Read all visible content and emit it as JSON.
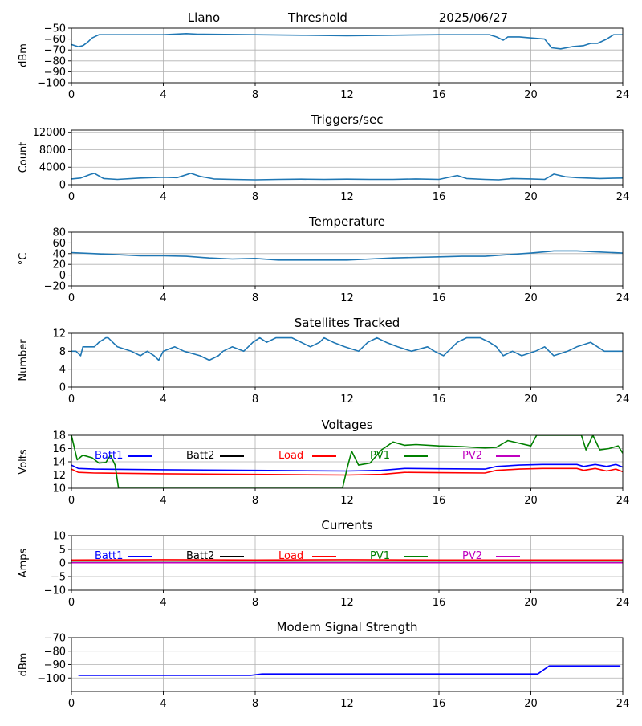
{
  "header": {
    "site": "Llano",
    "mode": "Threshold",
    "date": "2025/06/27"
  },
  "chart_data": [
    {
      "type": "line",
      "title": "",
      "ylabel": "dBm",
      "xlim": [
        0,
        24
      ],
      "ylim": [
        -100,
        -50
      ],
      "xticks": [
        0,
        4,
        8,
        12,
        16,
        20,
        24
      ],
      "yticks": [
        -100,
        -90,
        -80,
        -70,
        -60,
        -50
      ],
      "grid": true,
      "series": [
        {
          "color": "#1f77b4",
          "x": [
            0,
            0.3,
            0.5,
            0.7,
            0.9,
            1.2,
            2,
            4,
            5,
            5.5,
            8,
            10,
            12,
            14,
            16,
            17,
            18.2,
            18.5,
            18.8,
            19,
            19.5,
            20,
            20.6,
            20.9,
            21.3,
            21.8,
            22.3,
            22.6,
            22.9,
            23.3,
            23.6,
            24
          ],
          "y": [
            -65,
            -67,
            -66,
            -63,
            -59,
            -56,
            -56,
            -56,
            -55,
            -55.5,
            -56,
            -56.5,
            -57,
            -56.5,
            -56,
            -56,
            -56,
            -58,
            -61,
            -58,
            -58,
            -59,
            -60,
            -68,
            -69,
            -67,
            -66,
            -64,
            -64,
            -60,
            -56,
            -56
          ]
        }
      ]
    },
    {
      "type": "line",
      "title": "Triggers/sec",
      "ylabel": "Count",
      "xlim": [
        0,
        24
      ],
      "ylim": [
        0,
        12500
      ],
      "xticks": [
        0,
        4,
        8,
        12,
        16,
        20,
        24
      ],
      "yticks": [
        0,
        4000,
        8000,
        12000
      ],
      "grid": true,
      "series": [
        {
          "color": "#1f77b4",
          "x": [
            0,
            0.4,
            0.8,
            1.0,
            1.4,
            2,
            3,
            4,
            4.6,
            5.2,
            5.6,
            6.2,
            7,
            8,
            9,
            10,
            11,
            12,
            13,
            14,
            15,
            16,
            16.8,
            17.2,
            18,
            18.6,
            19.2,
            20,
            20.6,
            21,
            21.5,
            22,
            23,
            24
          ],
          "y": [
            1300,
            1500,
            2300,
            2600,
            1400,
            1200,
            1500,
            1700,
            1600,
            2600,
            1900,
            1300,
            1200,
            1100,
            1200,
            1250,
            1200,
            1250,
            1200,
            1200,
            1300,
            1200,
            2100,
            1400,
            1200,
            1100,
            1400,
            1300,
            1200,
            2400,
            1800,
            1600,
            1400,
            1500
          ]
        }
      ]
    },
    {
      "type": "line",
      "title": "Temperature",
      "ylabel": "°C",
      "xlim": [
        0,
        24
      ],
      "ylim": [
        -20,
        80
      ],
      "xticks": [
        0,
        4,
        8,
        12,
        16,
        20,
        24
      ],
      "yticks": [
        -20,
        0,
        20,
        40,
        60,
        80
      ],
      "grid": true,
      "series": [
        {
          "color": "#1f77b4",
          "x": [
            0,
            1,
            2,
            3,
            4,
            5,
            6,
            7,
            8,
            9,
            10,
            11,
            12,
            13,
            14,
            15,
            16,
            17,
            18,
            19,
            20,
            20.8,
            21,
            22,
            23,
            24
          ],
          "y": [
            42,
            40,
            38,
            36,
            36,
            35,
            32,
            30,
            31,
            28,
            28,
            28,
            28,
            30,
            32,
            33,
            34,
            35,
            35,
            38,
            41,
            44,
            45,
            45,
            43,
            41
          ]
        }
      ]
    },
    {
      "type": "line",
      "title": "Satellites Tracked",
      "ylabel": "Number",
      "xlim": [
        0,
        24
      ],
      "ylim": [
        0,
        12
      ],
      "xticks": [
        0,
        4,
        8,
        12,
        16,
        20,
        24
      ],
      "yticks": [
        0,
        4,
        8,
        12
      ],
      "grid": true,
      "series": [
        {
          "color": "#1f77b4",
          "x": [
            0,
            0.2,
            0.4,
            0.5,
            1.0,
            1.2,
            1.5,
            1.6,
            1.8,
            2.0,
            2.6,
            3.0,
            3.3,
            3.6,
            3.8,
            4.0,
            4.5,
            4.9,
            5.6,
            6.0,
            6.4,
            6.6,
            7.0,
            7.5,
            7.9,
            8.2,
            8.5,
            8.9,
            9.2,
            9.6,
            10.0,
            10.4,
            10.8,
            11.0,
            11.4,
            11.9,
            12.5,
            12.9,
            13.3,
            13.7,
            14.2,
            14.8,
            15.5,
            15.8,
            16.2,
            16.4,
            16.8,
            17.2,
            17.8,
            18.2,
            18.5,
            18.8,
            19.2,
            19.6,
            20.2,
            20.6,
            21.0,
            21.6,
            22.0,
            22.6,
            22.9,
            23.2,
            24
          ],
          "y": [
            8,
            8,
            7,
            9,
            9,
            10,
            11,
            11,
            10,
            9,
            8,
            7,
            8,
            7,
            6,
            8,
            9,
            8,
            7,
            6,
            7,
            8,
            9,
            8,
            10,
            11,
            10,
            11,
            11,
            11,
            10,
            9,
            10,
            11,
            10,
            9,
            8,
            10,
            11,
            10,
            9,
            8,
            9,
            8,
            7,
            8,
            10,
            11,
            11,
            10,
            9,
            7,
            8,
            7,
            8,
            9,
            7,
            8,
            9,
            10,
            9,
            8,
            8
          ]
        }
      ]
    },
    {
      "type": "line",
      "title": "Voltages",
      "ylabel": "Volts",
      "xlim": [
        0,
        24
      ],
      "ylim": [
        10,
        18
      ],
      "xticks": [
        0,
        4,
        8,
        12,
        16,
        20,
        24
      ],
      "yticks": [
        10,
        12,
        14,
        16,
        18
      ],
      "grid": true,
      "legend": "top",
      "series": [
        {
          "name": "Batt1",
          "color": "#0000ff",
          "x": [
            0,
            0.3,
            1,
            4,
            8,
            12,
            13.5,
            14.5,
            16,
            18,
            18.5,
            19.5,
            20.5,
            22,
            22.3,
            22.8,
            23.3,
            23.7,
            24
          ],
          "y": [
            13.5,
            13.0,
            12.9,
            12.8,
            12.7,
            12.6,
            12.7,
            13.0,
            12.95,
            12.9,
            13.3,
            13.5,
            13.6,
            13.6,
            13.3,
            13.6,
            13.3,
            13.6,
            13.2
          ]
        },
        {
          "name": "Batt2",
          "color": "#000000",
          "x": [],
          "y": []
        },
        {
          "name": "Load",
          "color": "#ff0000",
          "x": [
            0,
            0.3,
            1,
            4,
            8,
            12,
            13.5,
            14.5,
            16,
            18,
            18.5,
            19.5,
            20.5,
            22,
            22.3,
            22.8,
            23.3,
            23.7,
            24
          ],
          "y": [
            12.9,
            12.4,
            12.3,
            12.2,
            12.1,
            12.0,
            12.1,
            12.4,
            12.35,
            12.3,
            12.7,
            12.9,
            13.0,
            13.0,
            12.7,
            13.0,
            12.6,
            12.9,
            12.5
          ]
        },
        {
          "name": "PV1",
          "color": "#008000",
          "x": [
            0,
            0.25,
            0.5,
            0.9,
            1.2,
            1.5,
            1.7,
            1.9,
            2.05,
            11.8,
            12.0,
            12.2,
            12.5,
            13.0,
            13.5,
            14.0,
            14.5,
            15,
            16,
            17,
            17.5,
            18,
            18.5,
            19,
            19.5,
            20,
            20.25,
            22.2,
            22.4,
            22.7,
            23.0,
            23.4,
            23.8,
            24
          ],
          "y": [
            18,
            14.3,
            15.0,
            14.6,
            13.8,
            13.9,
            15.0,
            13.5,
            10,
            10,
            13.0,
            15.6,
            13.5,
            13.8,
            15.8,
            17.0,
            16.5,
            16.6,
            16.4,
            16.3,
            16.2,
            16.1,
            16.2,
            17.2,
            16.8,
            16.4,
            18,
            18,
            15.8,
            18,
            15.8,
            16.0,
            16.4,
            15.3
          ]
        },
        {
          "name": "PV2",
          "color": "#bf00bf",
          "x": [],
          "y": []
        }
      ]
    },
    {
      "type": "line",
      "title": "Currents",
      "ylabel": "Amps",
      "xlim": [
        0,
        24
      ],
      "ylim": [
        -10,
        10
      ],
      "xticks": [
        0,
        4,
        8,
        12,
        16,
        20,
        24
      ],
      "yticks": [
        -10,
        -5,
        0,
        5,
        10
      ],
      "grid": true,
      "legend": "top",
      "series": [
        {
          "name": "Batt1",
          "color": "#0000ff",
          "x": [],
          "y": []
        },
        {
          "name": "Batt2",
          "color": "#000000",
          "x": [],
          "y": []
        },
        {
          "name": "Load",
          "color": "#ff0000",
          "x": [
            0,
            4,
            8,
            12,
            16,
            20,
            24
          ],
          "y": [
            1.1,
            1.2,
            1.1,
            1.2,
            1.1,
            1.1,
            1.1
          ]
        },
        {
          "name": "PV1",
          "color": "#008000",
          "x": [
            0,
            24
          ],
          "y": [
            0.2,
            0.2
          ]
        },
        {
          "name": "PV2",
          "color": "#bf00bf",
          "x": [
            0,
            24
          ],
          "y": [
            0.1,
            0.1
          ]
        }
      ]
    },
    {
      "type": "line",
      "title": "Modem Signal Strength",
      "ylabel": "dBm",
      "xlim": [
        0,
        24
      ],
      "ylim": [
        -110,
        -70
      ],
      "xticks": [
        0,
        4,
        8,
        12,
        16,
        20,
        24
      ],
      "yticks": [
        -100,
        -90,
        -80,
        -70
      ],
      "grid": true,
      "series": [
        {
          "color": "#0000ff",
          "x": [
            0.3,
            7.8,
            8.3,
            20.3,
            20.8,
            23.9
          ],
          "y": [
            -98,
            -98,
            -97,
            -97,
            -91,
            -91
          ]
        }
      ]
    }
  ]
}
